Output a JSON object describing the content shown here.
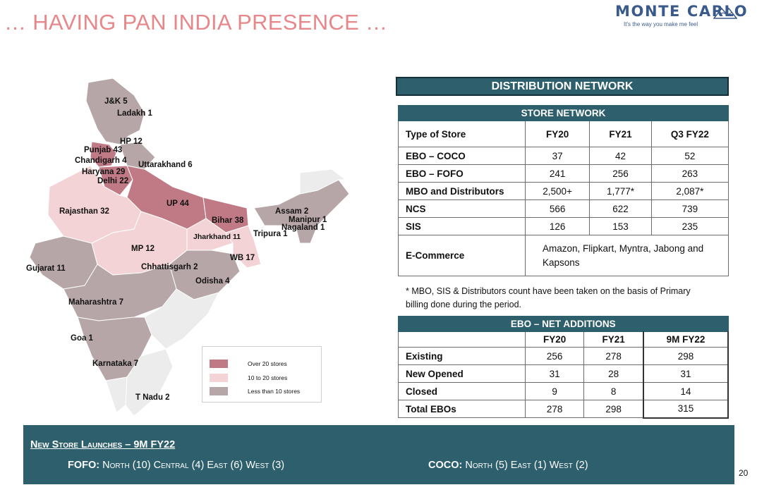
{
  "slide": {
    "title": "… HAVING PAN INDIA PRESENCE …",
    "page_number": "20"
  },
  "brand": {
    "name": "MONTE CARLO",
    "tagline": "It's the way you make me feel"
  },
  "map": {
    "labels": {
      "jk": "J&K 5",
      "ladakh": "Ladakh 1",
      "hp": "HP 12",
      "punjab": "Punjab 43",
      "chandigarh": "Chandigarh  4",
      "uttarakhand": "Uttarakhand 6",
      "haryana": "Haryana 29",
      "delhi": "Delhi 22",
      "up": "UP 44",
      "rajasthan": "Rajasthan 32",
      "bihar": "Bihar 38",
      "assam": "Assam 2",
      "manipur": "Manipur 1",
      "nagaland": "Nagaland 1",
      "tripura": "Tripura 1",
      "jharkhand": "Jharkhand  11",
      "mp": "MP 12",
      "wb": "WB 17",
      "gujarat": "Gujarat 11",
      "chhattisgarh": "Chhattisgarh 2",
      "odisha": "Odisha 4",
      "maharashtra": "Maharashtra 7",
      "goa": "Goa 1",
      "karnataka": "Karnataka 7",
      "tnadu": "T Nadu 2"
    },
    "legend": {
      "high": {
        "label": "Over 20 stores",
        "color": "#c07a86"
      },
      "mid": {
        "label": "10 to 20 stores",
        "color": "#f3d3d5"
      },
      "low": {
        "label": "Less than 10 stores",
        "color": "#b7a6a8"
      }
    }
  },
  "distribution": {
    "header": "DISTRIBUTION NETWORK",
    "store_network": {
      "caption": "STORE NETWORK",
      "columns": [
        "Type of Store",
        "FY20",
        "FY21",
        "Q3 FY22"
      ],
      "rows": [
        {
          "type": "EBO – COCO",
          "fy20": "37",
          "fy21": "42",
          "q3fy22": "52"
        },
        {
          "type": "EBO – FOFO",
          "fy20": "241",
          "fy21": "256",
          "q3fy22": "263"
        },
        {
          "type": "MBO and Distributors",
          "fy20": "2,500+",
          "fy21": "1,777*",
          "q3fy22": "2,087*"
        },
        {
          "type": "NCS",
          "fy20": "566",
          "fy21": "622",
          "q3fy22": "739"
        },
        {
          "type": "SIS",
          "fy20": "126",
          "fy21": "153",
          "q3fy22": "235"
        }
      ],
      "ecommerce": {
        "type": "E-Commerce",
        "value_line1": "Amazon, Flipkart, Myntra, Jabong and",
        "value_line2": "Kapsons"
      }
    },
    "footnote_line1": "* MBO, SIS & Distributors count have been taken on the basis of Primary",
    "footnote_line2": "billing done during the period.",
    "ebo_net_additions": {
      "caption": "EBO – NET ADDITIONS",
      "columns": [
        "",
        "FY20",
        "FY21",
        "9M FY22"
      ],
      "rows": [
        {
          "label": "Existing",
          "fy20": "256",
          "fy21": "278",
          "fy22": "298"
        },
        {
          "label": "New Opened",
          "fy20": "31",
          "fy21": "28",
          "fy22": "31"
        },
        {
          "label": "Closed",
          "fy20": "9",
          "fy21": "8",
          "fy22": "14"
        },
        {
          "label": "Total EBOs",
          "fy20": "278",
          "fy21": "298",
          "fy22": "315"
        }
      ]
    }
  },
  "launches": {
    "title": "New Store Launches – 9M FY22",
    "fofo": {
      "label": "FOFO:",
      "north": "North (10)",
      "central": "Central (4)",
      "east": "East (6)",
      "west": "West (3)"
    },
    "coco": {
      "label": "COCO:",
      "north": "North (5)",
      "east": "East (1)",
      "west": "West (2)"
    },
    "band_color": "#2e5f6c"
  }
}
